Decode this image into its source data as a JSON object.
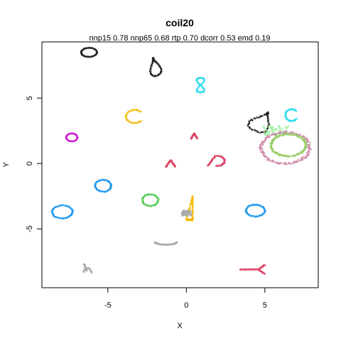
{
  "chart_data": {
    "type": "scatter",
    "title": "coil20",
    "subtitle": "nnp15 0.78 nnp65 0.68 rtp 0.70 dcorr 0.53 emd 0.19",
    "xlabel": "X",
    "ylabel": "Y",
    "xlim": [
      -9.2,
      8.4
    ],
    "ylim": [
      -9.5,
      9.3
    ],
    "xticks": [
      -5,
      0,
      5
    ],
    "yticks": [
      -5,
      0,
      5
    ],
    "grid": false,
    "legend": "none",
    "clusters": [
      {
        "color": "#222222",
        "shape": "ring",
        "cx": -6.2,
        "cy": 8.5,
        "rx": 0.5,
        "ry": 0.35,
        "rot": 20
      },
      {
        "color": "#222222",
        "shape": "teardrop",
        "cx": -2.0,
        "cy": 7.4,
        "rx": 0.45,
        "ry": 0.7,
        "rot": 15
      },
      {
        "color": "#33DDEE",
        "shape": "figure8",
        "cx": 0.9,
        "cy": 6.0,
        "rx": 0.3,
        "ry": 0.55,
        "rot": 0
      },
      {
        "color": "#F5C226",
        "shape": "arc",
        "cx": -3.3,
        "cy": 3.6,
        "rx": 0.55,
        "ry": 0.5,
        "rot": 0
      },
      {
        "color": "#CC22CC",
        "shape": "ring",
        "cx": -7.3,
        "cy": 2.0,
        "rx": 0.35,
        "ry": 0.3,
        "rot": 0
      },
      {
        "color": "#222222",
        "shape": "teardrop",
        "cx": 4.8,
        "cy": 3.2,
        "rx": 0.85,
        "ry": 0.8,
        "rot": -30
      },
      {
        "color": "#33DDEE",
        "shape": "arc",
        "cx": 6.7,
        "cy": 3.7,
        "rx": 0.4,
        "ry": 0.45,
        "rot": 0
      },
      {
        "color": "#99EE99",
        "shape": "scatter",
        "cx": 5.7,
        "cy": 2.5,
        "rx": 0.8,
        "ry": 0.4,
        "rot": 0
      },
      {
        "color": "#CC88AA",
        "shape": "ring",
        "cx": 6.3,
        "cy": 1.2,
        "rx": 1.55,
        "ry": 1.2,
        "rot": -10
      },
      {
        "color": "#99CC66",
        "shape": "ring",
        "cx": 6.5,
        "cy": 1.4,
        "rx": 1.1,
        "ry": 0.85,
        "rot": -10
      },
      {
        "color": "#DD4466",
        "shape": "chevron",
        "cx": 0.5,
        "cy": 2.1,
        "rx": 0.2,
        "ry": 0.2,
        "rot": 0
      },
      {
        "color": "#DD4466",
        "shape": "chevron",
        "cx": -1.0,
        "cy": 0.0,
        "rx": 0.3,
        "ry": 0.25,
        "rot": 0
      },
      {
        "color": "#DD4466",
        "shape": "dshape",
        "cx": 1.9,
        "cy": 0.2,
        "rx": 0.6,
        "ry": 0.4,
        "rot": 0
      },
      {
        "color": "#2299EE",
        "shape": "ring",
        "cx": -5.3,
        "cy": -1.7,
        "rx": 0.5,
        "ry": 0.45,
        "rot": 0
      },
      {
        "color": "#55CC55",
        "shape": "ring",
        "cx": -2.3,
        "cy": -2.8,
        "rx": 0.5,
        "ry": 0.45,
        "rot": 0
      },
      {
        "color": "#F5B800",
        "shape": "triangle",
        "cx": 0.4,
        "cy": -3.4,
        "rx": 0.4,
        "ry": 0.9,
        "rot": 0
      },
      {
        "color": "#AAAAAA",
        "shape": "scatter",
        "cx": 0.0,
        "cy": -3.8,
        "rx": 0.3,
        "ry": 0.2,
        "rot": 0
      },
      {
        "color": "#2299EE",
        "shape": "ring",
        "cx": -7.9,
        "cy": -3.7,
        "rx": 0.65,
        "ry": 0.5,
        "rot": 0
      },
      {
        "color": "#2299EE",
        "shape": "ring",
        "cx": 4.4,
        "cy": -3.6,
        "rx": 0.6,
        "ry": 0.45,
        "rot": 0
      },
      {
        "color": "#AAAAAA",
        "shape": "bowl",
        "cx": -1.3,
        "cy": -6.1,
        "rx": 0.7,
        "ry": 0.35,
        "rot": 0
      },
      {
        "color": "#AAAAAA",
        "shape": "hook",
        "cx": -6.3,
        "cy": -8.2,
        "rx": 0.35,
        "ry": 0.5,
        "rot": 0
      },
      {
        "color": "#DD4466",
        "shape": "fork",
        "cx": 4.2,
        "cy": -8.1,
        "rx": 0.8,
        "ry": 0.35,
        "rot": 0
      }
    ]
  }
}
